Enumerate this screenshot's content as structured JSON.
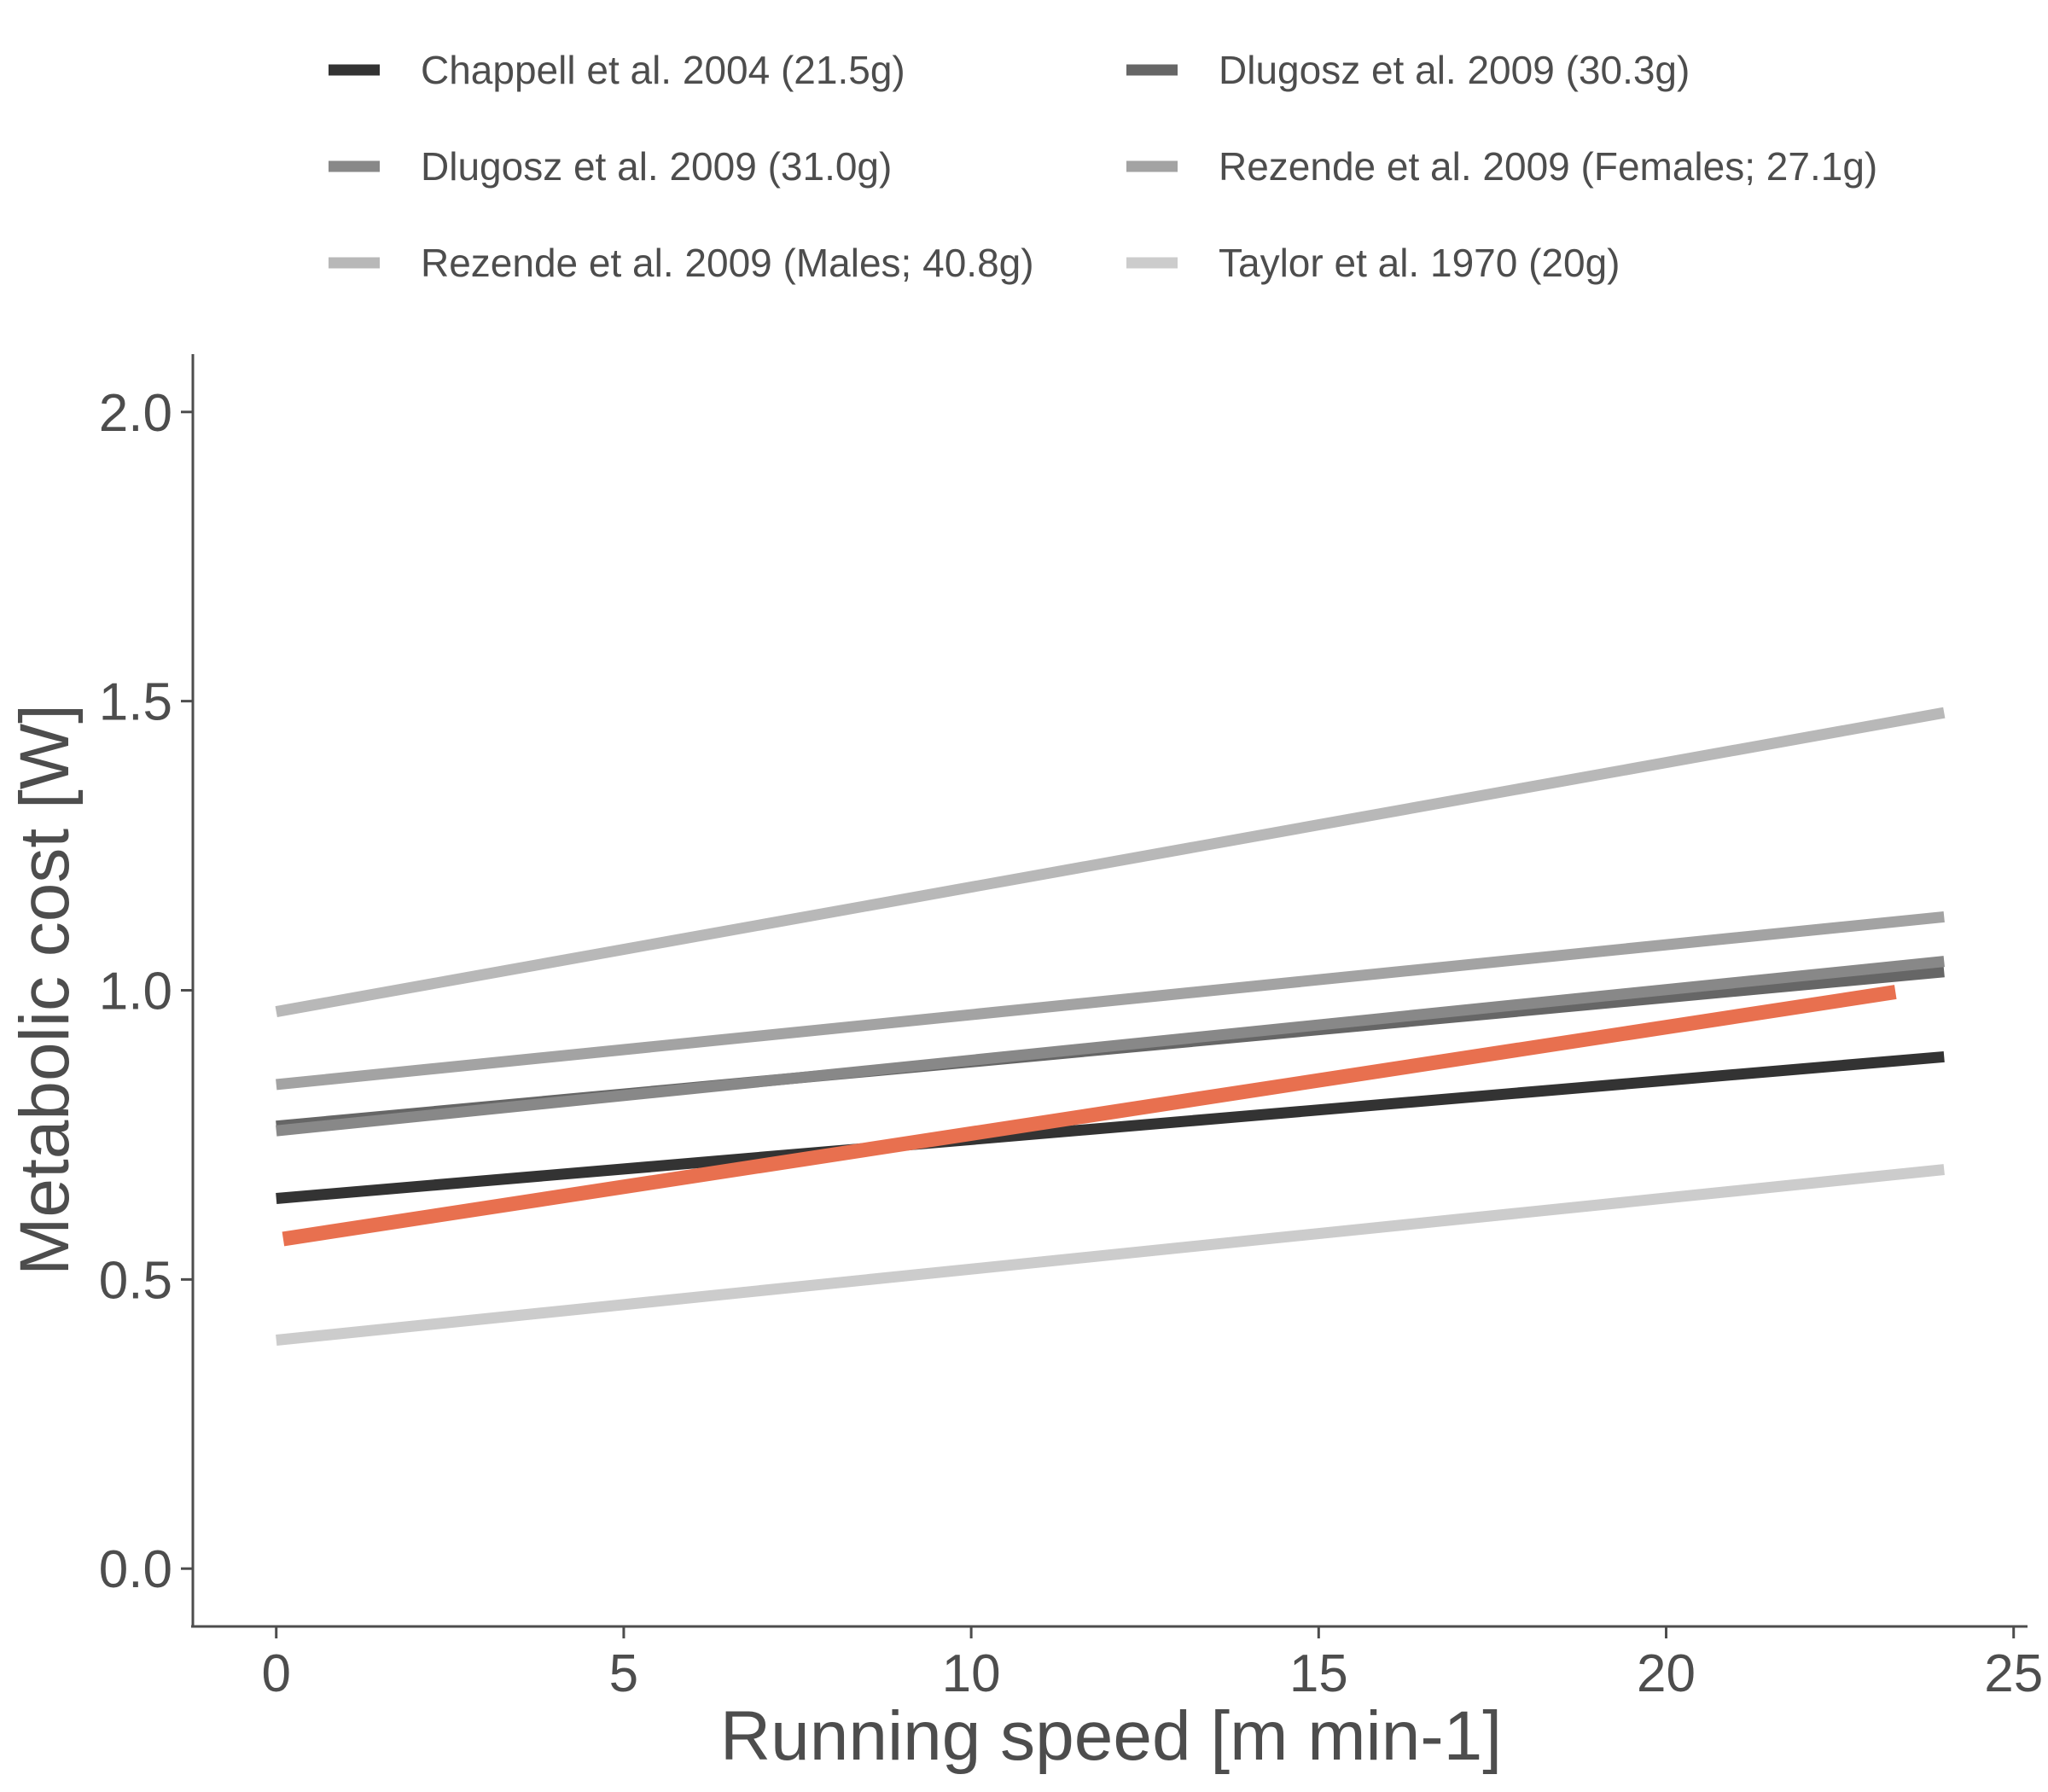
{
  "chart_data": {
    "type": "line",
    "title": "",
    "xlabel": "Running speed [m min-1]",
    "ylabel": "Metabolic cost [W]",
    "xlim": [
      -1.2,
      25.2
    ],
    "ylim": [
      -0.1,
      2.1
    ],
    "xticks": [
      0,
      5,
      10,
      15,
      20,
      25
    ],
    "yticks": [
      0.0,
      0.5,
      1.0,
      1.5,
      2.0
    ],
    "xtick_labels": [
      "0",
      "5",
      "10",
      "15",
      "20",
      "25"
    ],
    "ytick_labels": [
      "0.0",
      "0.5",
      "1.0",
      "1.5",
      "2.0"
    ],
    "grid": false,
    "legend_position": "top",
    "series": [
      {
        "name": "Chappell et al. 2004 (21.5g)",
        "color": "#333333",
        "x": [
          0,
          24
        ],
        "y": [
          0.64,
          0.885
        ]
      },
      {
        "name": "Dlugosz et al. 2009 (30.3g)",
        "color": "#666666",
        "x": [
          0,
          24
        ],
        "y": [
          0.765,
          1.032
        ]
      },
      {
        "name": "Dlugosz et al. 2009 (31.0g)",
        "color": "#888888",
        "x": [
          0,
          24
        ],
        "y": [
          0.757,
          1.05
        ]
      },
      {
        "name": "Rezende et al. 2009 (Females; 27.1g)",
        "color": "#a3a3a3",
        "x": [
          0,
          24
        ],
        "y": [
          0.837,
          1.127
        ]
      },
      {
        "name": "Rezende et al. 2009 (Males; 40.8g)",
        "color": "#b8b8b8",
        "x": [
          0,
          24
        ],
        "y": [
          0.963,
          1.48
        ]
      },
      {
        "name": "Taylor et al. 1970 (20g)",
        "color": "#cccccc",
        "x": [
          0,
          24
        ],
        "y": [
          0.395,
          0.69
        ]
      }
    ],
    "highlight_series": {
      "color": "#e8704f",
      "x": [
        0.1,
        23.3
      ],
      "y": [
        0.57,
        0.997
      ]
    }
  }
}
